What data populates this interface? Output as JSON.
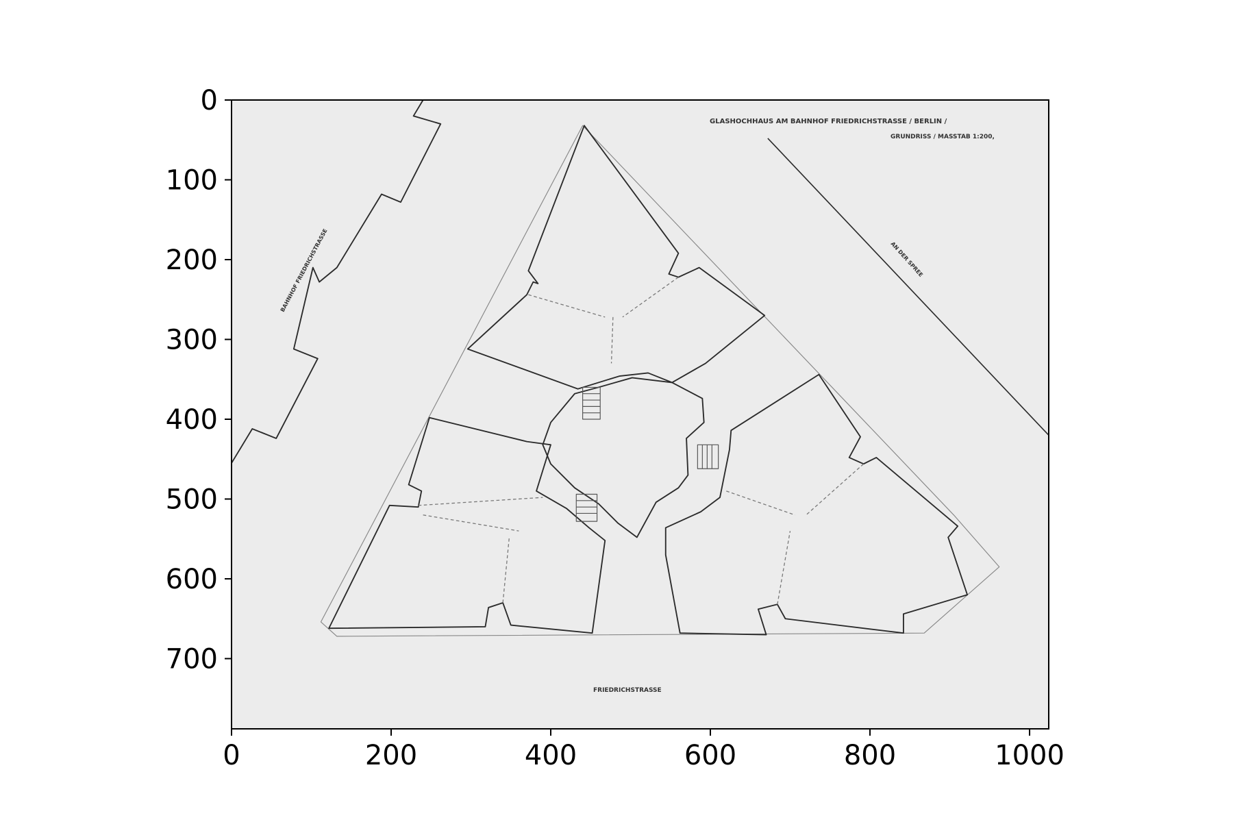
{
  "chart_data": {
    "type": "image",
    "xlim": [
      0,
      1024
    ],
    "ylim": [
      0,
      788
    ],
    "y_inverted": true,
    "x_ticks": [
      "0",
      "200",
      "400",
      "600",
      "800",
      "1000"
    ],
    "y_ticks": [
      "0",
      "100",
      "200",
      "300",
      "400",
      "500",
      "600",
      "700"
    ],
    "x_tick_values": [
      0,
      200,
      400,
      600,
      800,
      1000
    ],
    "y_tick_values": [
      0,
      100,
      200,
      300,
      400,
      500,
      600,
      700
    ],
    "grid": false,
    "image_content": {
      "title": "GLASHOCHHAUS AM BAHNHOF FRIEDRICHSTRASSE / BERLIN /",
      "subtitle": "GRUNDRISS / MASSTAB 1:200,",
      "street_bottom": "FRIEDRICHSTRASSE",
      "street_left": "BAHNHOF FRIEDRICHSTRASSE",
      "street_right": "AN DER SPREE"
    },
    "colors": {
      "background": "#ffffff",
      "paper": "#ececec",
      "ink": "#2b2b2b",
      "axis": "#000000"
    }
  }
}
